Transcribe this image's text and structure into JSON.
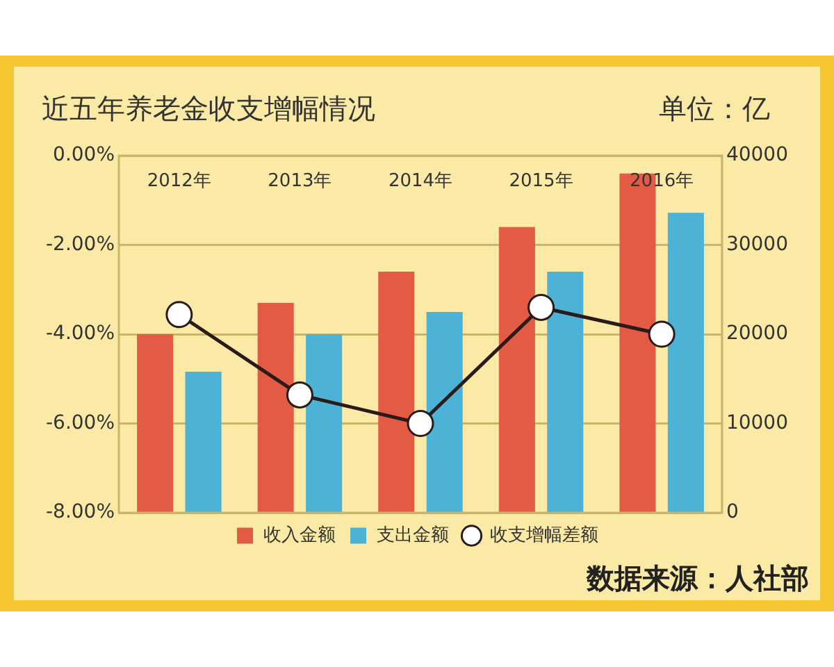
{
  "chart_data": {
    "type": "bar",
    "title": "近五年养老金收支增幅情况",
    "y2label": "单位：亿",
    "categories": [
      "2012年",
      "2013年",
      "2014年",
      "2015年",
      "2016年"
    ],
    "series": [
      {
        "name": "收入金额",
        "axis": "y2",
        "color": "#e35a45",
        "values": [
          20000,
          23500,
          27000,
          32000,
          38000
        ]
      },
      {
        "name": "支出金额",
        "axis": "y2",
        "color": "#4cb3d6",
        "values": [
          15800,
          20000,
          22500,
          27000,
          33600
        ]
      },
      {
        "name": "收支增幅差额",
        "type": "line",
        "axis": "y",
        "color": "#2a1a1a",
        "marker": "circle",
        "values": [
          -3.56,
          -5.36,
          -6.0,
          -3.4,
          -4.0
        ]
      }
    ],
    "ylim": [
      -8,
      0
    ],
    "yticks": [
      {
        "value": -8,
        "label": "-8.00%"
      },
      {
        "value": -6,
        "label": "-6.00%"
      },
      {
        "value": -4,
        "label": "-4.00%"
      },
      {
        "value": -2,
        "label": "-2.00%"
      },
      {
        "value": 0,
        "label": "0.00%"
      }
    ],
    "y2lim": [
      0,
      40000
    ],
    "y2ticks": [
      0,
      10000,
      20000,
      30000,
      40000
    ],
    "grid": "y",
    "legend": "bottom",
    "annotations": [
      "数据来源：人社部"
    ]
  }
}
